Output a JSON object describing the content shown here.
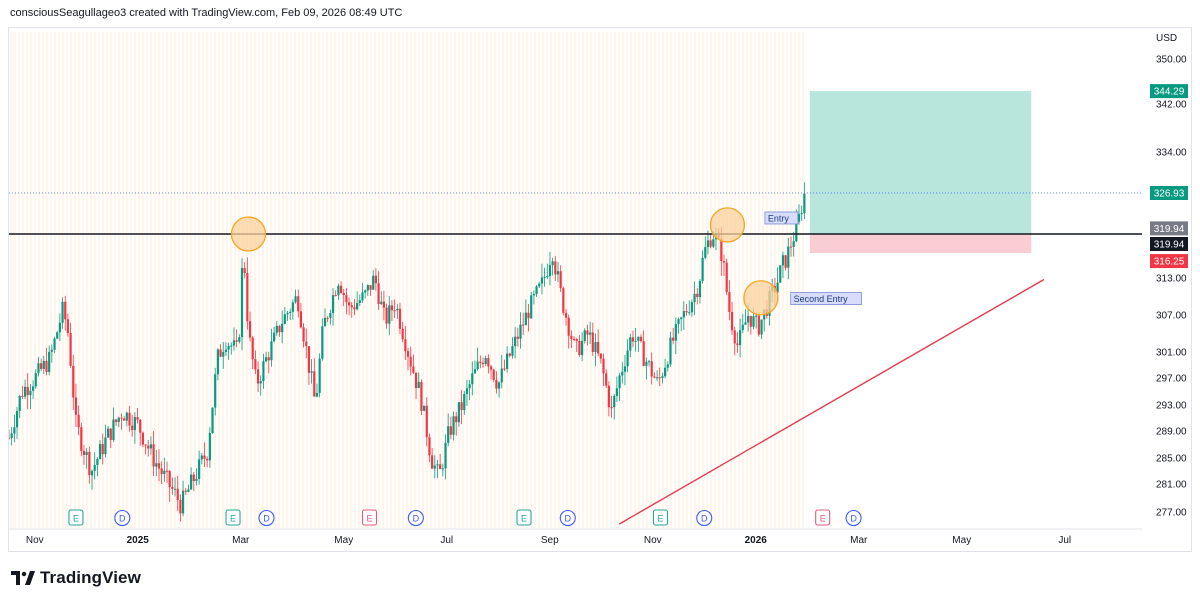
{
  "header": {
    "attribution": "consciousSeagullageo3 created with TradingView.com, Feb 09, 2026 08:49 UTC"
  },
  "brand": {
    "name": "TradingView"
  },
  "chart_data": {
    "type": "candlestick",
    "currency": "USD",
    "ylim": [
      275,
      354
    ],
    "price_ticks": [
      350,
      342,
      334,
      313,
      307,
      301,
      297,
      293,
      289,
      285,
      281,
      277
    ],
    "time_ticks": [
      {
        "label": "Nov",
        "bold": false,
        "x": 0.5
      },
      {
        "label": "2025",
        "bold": true,
        "x": 2.5
      },
      {
        "label": "Mar",
        "bold": false,
        "x": 4.5
      },
      {
        "label": "May",
        "bold": false,
        "x": 6.5
      },
      {
        "label": "Jul",
        "bold": false,
        "x": 8.5
      },
      {
        "label": "Sep",
        "bold": false,
        "x": 10.5
      },
      {
        "label": "Nov",
        "bold": false,
        "x": 12.5
      },
      {
        "label": "2026",
        "bold": true,
        "x": 14.5
      },
      {
        "label": "Mar",
        "bold": false,
        "x": 16.5
      },
      {
        "label": "May",
        "bold": false,
        "x": 18.5
      },
      {
        "label": "Jul",
        "bold": false,
        "x": 20.5
      }
    ],
    "xlim": [
      0,
      22
    ],
    "price_path": [
      [
        0.0,
        288
      ],
      [
        0.25,
        295
      ],
      [
        0.5,
        297
      ],
      [
        0.8,
        300
      ],
      [
        1.05,
        308
      ],
      [
        1.15,
        304
      ],
      [
        1.3,
        290
      ],
      [
        1.6,
        283
      ],
      [
        1.9,
        288
      ],
      [
        2.2,
        292
      ],
      [
        2.5,
        290
      ],
      [
        2.8,
        285
      ],
      [
        3.1,
        281
      ],
      [
        3.35,
        278
      ],
      [
        3.6,
        282
      ],
      [
        3.85,
        286
      ],
      [
        4.05,
        300
      ],
      [
        4.2,
        303
      ],
      [
        4.45,
        301
      ],
      [
        4.55,
        318
      ],
      [
        4.65,
        304
      ],
      [
        4.8,
        296
      ],
      [
        5.0,
        300
      ],
      [
        5.3,
        306
      ],
      [
        5.6,
        310
      ],
      [
        5.8,
        300
      ],
      [
        5.95,
        293
      ],
      [
        6.1,
        305
      ],
      [
        6.4,
        313
      ],
      [
        6.6,
        308
      ],
      [
        6.9,
        310
      ],
      [
        7.1,
        313
      ],
      [
        7.3,
        306
      ],
      [
        7.5,
        309
      ],
      [
        7.75,
        301
      ],
      [
        8.0,
        294
      ],
      [
        8.2,
        285
      ],
      [
        8.35,
        282
      ],
      [
        8.55,
        289
      ],
      [
        8.8,
        293
      ],
      [
        9.0,
        297
      ],
      [
        9.25,
        301
      ],
      [
        9.5,
        296
      ],
      [
        9.8,
        302
      ],
      [
        10.1,
        308
      ],
      [
        10.35,
        312
      ],
      [
        10.55,
        317
      ],
      [
        10.75,
        309
      ],
      [
        11.0,
        301
      ],
      [
        11.25,
        304
      ],
      [
        11.5,
        299
      ],
      [
        11.7,
        292
      ],
      [
        11.85,
        297
      ],
      [
        12.1,
        304
      ],
      [
        12.35,
        300
      ],
      [
        12.6,
        296
      ],
      [
        12.85,
        302
      ],
      [
        13.1,
        307
      ],
      [
        13.35,
        311
      ],
      [
        13.55,
        318
      ],
      [
        13.7,
        320
      ],
      [
        13.85,
        316
      ],
      [
        14.0,
        307
      ],
      [
        14.15,
        302
      ],
      [
        14.35,
        307
      ],
      [
        14.55,
        305
      ],
      [
        14.75,
        309
      ],
      [
        14.95,
        313
      ],
      [
        15.15,
        317
      ],
      [
        15.3,
        321
      ],
      [
        15.45,
        326.9
      ]
    ],
    "horizontal_levels": [
      {
        "name": "resistance",
        "price": 319.94,
        "color": "#131722"
      },
      {
        "name": "last-price",
        "price": 326.93,
        "color": "#2962ff",
        "dotted": true
      }
    ],
    "trendline": {
      "from": {
        "x": 11.85,
        "y": 275.5
      },
      "to": {
        "x": 26.3,
        "y": 343.5
      },
      "color": "#e53950"
    },
    "position": {
      "x_start": 15.55,
      "x_end": 19.85,
      "entry": 319.94,
      "target": 344.29,
      "stop": 316.25,
      "profit_color": "#b8e6dc",
      "loss_color": "#f9cdd2"
    },
    "markers": [
      {
        "x": 4.65,
        "y": 319.94
      },
      {
        "x": 13.95,
        "y": 321.5
      },
      {
        "x": 14.6,
        "y": 309.8
      }
    ],
    "notes": [
      {
        "text": "Entry",
        "x": 14.6,
        "y": 322.5
      },
      {
        "text": "Second Entry",
        "x": 15.1,
        "y": 309.5
      }
    ],
    "events": [
      {
        "type": "E",
        "x": 1.3
      },
      {
        "type": "D",
        "x": 2.2
      },
      {
        "type": "E",
        "x": 4.35
      },
      {
        "type": "D",
        "x": 5.0
      },
      {
        "type": "E",
        "x": 7.0
      },
      {
        "type": "D",
        "x": 7.9
      },
      {
        "type": "E",
        "x": 10.0
      },
      {
        "type": "D",
        "x": 10.85
      },
      {
        "type": "E",
        "x": 12.65
      },
      {
        "type": "D",
        "x": 13.5
      },
      {
        "type": "E",
        "x": 15.8
      },
      {
        "type": "D",
        "x": 16.4
      }
    ],
    "price_tags": [
      {
        "value": "344.29",
        "price": 344.29,
        "bg": "#089981"
      },
      {
        "value": "326.93",
        "price": 326.93,
        "bg": "#089981"
      },
      {
        "value": "319.94",
        "price": 320.9,
        "bg": "#787b86"
      },
      {
        "value": "319.94",
        "price": 318.0,
        "bg": "#131722"
      },
      {
        "value": "316.25",
        "price": 315.2,
        "bg": "#f23645"
      }
    ],
    "colors": {
      "up": "#089981",
      "down": "#f23645",
      "marker_fill": "#fcd19c",
      "marker_stroke": "#f5a623"
    }
  }
}
